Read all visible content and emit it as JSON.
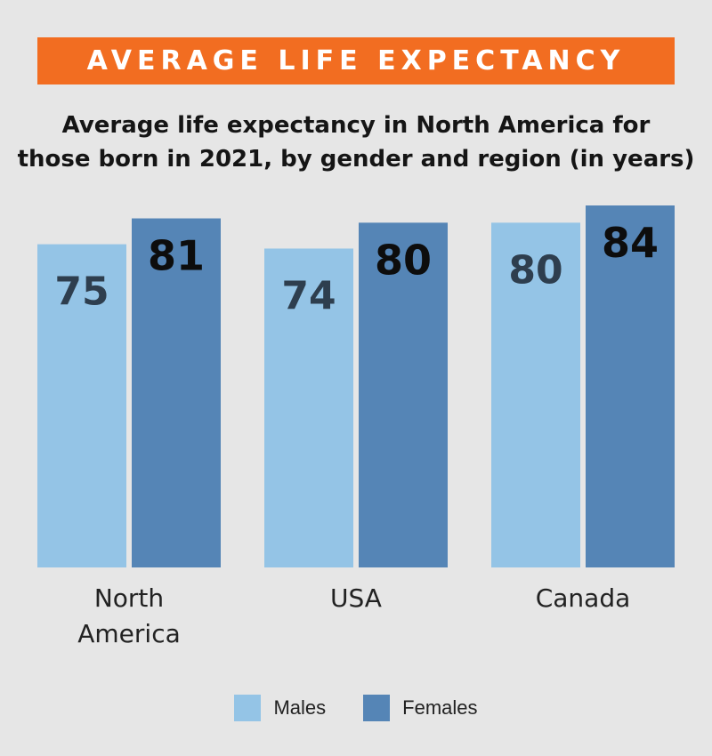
{
  "banner": {
    "text": "AVERAGE LIFE EXPECTANCY",
    "color": "#f26d21"
  },
  "subtitle": {
    "line1": "Average life expectancy in North America for",
    "line2": "those born in 2021, by gender and region (in years)"
  },
  "chart_data": {
    "type": "bar",
    "title": "Average life expectancy in North America for those born in 2021, by gender and region (in years)",
    "categories": [
      [
        "North",
        "America"
      ],
      [
        "USA"
      ],
      [
        "Canada"
      ]
    ],
    "series": [
      {
        "name": "Males",
        "values": [
          75,
          74,
          80
        ],
        "color": "#94c4e6",
        "label_color": "#2e3e4e"
      },
      {
        "name": "Females",
        "values": [
          81,
          80,
          84
        ],
        "color": "#5585b6",
        "label_color": "#0d0d0d"
      }
    ],
    "xlabel": "",
    "ylabel": "",
    "ylim": [
      0,
      84
    ],
    "grid": false,
    "legend_position": "bottom-center"
  },
  "legend": {
    "males_label": "Males",
    "females_label": "Females"
  }
}
